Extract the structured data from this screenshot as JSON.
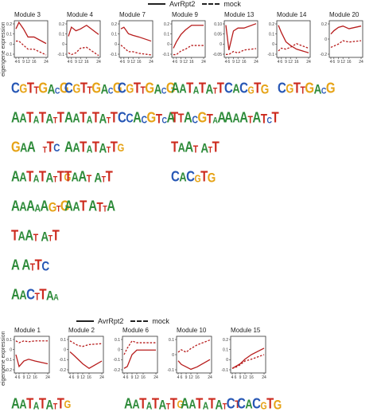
{
  "colors": {
    "A": "#2e8b3a",
    "C": "#2757b5",
    "G": "#e6a317",
    "T": "#cc2a1e",
    "line": "#b71c1c",
    "axis": "#333333"
  },
  "top": {
    "legend": {
      "solid": "AvrRpt2",
      "dashed": "mock"
    },
    "ylabel": "eigengene expression",
    "modules": [
      {
        "title": "Module 3",
        "yticks": [
          "0.2",
          "0.1",
          "0",
          "-0.1"
        ],
        "ylim": [
          -0.15,
          0.3
        ],
        "x": [
          4,
          6,
          9,
          12,
          16,
          24
        ],
        "avr": [
          0.2,
          0.28,
          0.2,
          0.1,
          0.1,
          0.02
        ],
        "mock": [
          0.05,
          0.05,
          0.0,
          -0.05,
          -0.05,
          -0.12
        ]
      },
      {
        "title": "Module 4",
        "yticks": [
          "0.2",
          "0.1",
          "0",
          "-0.1"
        ],
        "ylim": [
          -0.15,
          0.25
        ],
        "x": [
          4,
          6,
          9,
          12,
          16,
          24
        ],
        "avr": [
          0.08,
          0.18,
          0.14,
          0.16,
          0.2,
          0.1
        ],
        "mock": [
          -0.1,
          -0.12,
          -0.1,
          -0.05,
          -0.04,
          -0.13
        ]
      },
      {
        "title": "Module 7",
        "yticks": [
          "0.2",
          "0.1",
          "0",
          "-0.1"
        ],
        "ylim": [
          -0.15,
          0.3
        ],
        "x": [
          4,
          6,
          9,
          12,
          16,
          24
        ],
        "avr": [
          0.2,
          0.22,
          0.14,
          0.12,
          0.1,
          0.05
        ],
        "mock": [
          0.0,
          -0.03,
          -0.08,
          -0.08,
          -0.1,
          -0.12
        ]
      },
      {
        "title": "Module 9",
        "yticks": [
          "0.2",
          "0.1",
          "0",
          "-0.1"
        ],
        "ylim": [
          -0.15,
          0.25
        ],
        "x": [
          4,
          6,
          9,
          12,
          16,
          24
        ],
        "avr": [
          -0.05,
          0.02,
          0.1,
          0.15,
          0.2,
          0.2
        ],
        "mock": [
          -0.12,
          -0.12,
          -0.08,
          -0.06,
          -0.02,
          -0.02
        ]
      },
      {
        "title": "Module 13",
        "yticks": [
          "0.10",
          "0.05",
          "0",
          "-0.05"
        ],
        "ylim": [
          -0.1,
          0.15
        ],
        "x": [
          4,
          6,
          9,
          12,
          16,
          24
        ],
        "avr": [
          0.12,
          -0.05,
          0.08,
          0.1,
          0.1,
          0.13
        ],
        "mock": [
          -0.08,
          -0.08,
          -0.06,
          -0.07,
          -0.05,
          -0.04
        ]
      },
      {
        "title": "Module 14",
        "yticks": [
          "0.2",
          "0.1",
          "0",
          "-0.1"
        ],
        "ylim": [
          -0.15,
          0.25
        ],
        "x": [
          4,
          6,
          9,
          12,
          16,
          24
        ],
        "avr": [
          0.2,
          0.12,
          0.02,
          -0.02,
          -0.06,
          -0.1
        ],
        "mock": [
          -0.08,
          -0.05,
          -0.06,
          -0.04,
          0.0,
          -0.05
        ]
      },
      {
        "title": "Module 20",
        "yticks": [
          "0.2",
          "0",
          "-0.2"
        ],
        "ylim": [
          -0.25,
          0.3
        ],
        "x": [
          4,
          6,
          9,
          12,
          16,
          24
        ],
        "avr": [
          0.1,
          0.15,
          0.2,
          0.22,
          0.18,
          0.22
        ],
        "mock": [
          -0.1,
          -0.08,
          -0.05,
          0.0,
          -0.02,
          0.0
        ]
      }
    ],
    "xticks": [
      "4",
      "6",
      "9",
      "12",
      "16",
      "24"
    ],
    "motif_rows": [
      [
        {
          "seq": "CGTTGACG",
          "col": 0
        },
        {
          "seq": "CGTTGACG",
          "col": 1
        },
        {
          "seq": "CGTTGACG",
          "col": 2
        },
        {
          "seq": "AATATATT",
          "col": 3
        },
        {
          "seq": "CACGTG",
          "col": 4
        },
        {
          "seq": "CGTTGACG",
          "col": 5
        }
      ],
      [
        {
          "seq": "AATATATT",
          "col": 0
        },
        {
          "seq": "AATATATT",
          "col": 1
        },
        {
          "seq": "CCACGTCA",
          "col": 2
        },
        {
          "seq": "TTACGTAA",
          "col": 3
        },
        {
          "seq": "AAATATCT",
          "col": 4
        }
      ],
      [
        {
          "seq": "GAA   TTC",
          "col": 0
        },
        {
          "seq": "AATATATTG",
          "col": 1
        },
        {
          "seq": "TAAT ATT",
          "col": 3
        }
      ],
      [
        {
          "seq": "AATATATTG",
          "col": 0
        },
        {
          "seq": "TAAT ATT",
          "col": 1
        },
        {
          "seq": "CACGTG",
          "col": 3
        }
      ],
      [
        {
          "seq": "AAAAAGTG",
          "col": 0
        },
        {
          "seq": "AAT ATTA",
          "col": 1
        }
      ],
      [
        {
          "seq": "TAAT ATT",
          "col": 0
        }
      ],
      [
        {
          "seq": "A ATTC",
          "col": 0
        }
      ],
      [
        {
          "seq": "AACTTAA",
          "col": 0
        }
      ]
    ]
  },
  "bottom": {
    "legend": {
      "solid": "AvrRpt2",
      "dashed": "mock"
    },
    "ylabel": "eigengene expression",
    "modules": [
      {
        "title": "Module 1",
        "yticks": [
          "0.1",
          "0",
          "-0.1",
          "-0.2"
        ],
        "ylim": [
          -0.25,
          0.15
        ],
        "x": [
          4,
          6,
          9,
          12,
          16,
          24
        ],
        "avr": [
          -0.05,
          -0.18,
          -0.12,
          -0.1,
          -0.12,
          -0.15
        ],
        "mock": [
          0.1,
          0.08,
          0.1,
          0.09,
          0.1,
          0.1
        ]
      },
      {
        "title": "Module 2",
        "yticks": [
          "0.1",
          "0",
          "-0.1",
          "-0.2"
        ],
        "ylim": [
          -0.25,
          0.15
        ],
        "x": [
          4,
          6,
          9,
          12,
          16,
          24
        ],
        "avr": [
          -0.02,
          -0.05,
          -0.1,
          -0.15,
          -0.2,
          -0.12
        ],
        "mock": [
          0.1,
          0.08,
          0.05,
          0.04,
          0.06,
          0.07
        ]
      },
      {
        "title": "Module 6",
        "yticks": [
          "0.1",
          "0",
          "-0.1",
          "-0.2"
        ],
        "ylim": [
          -0.25,
          0.15
        ],
        "x": [
          4,
          6,
          9,
          12,
          16,
          24
        ],
        "avr": [
          -0.2,
          -0.18,
          -0.05,
          0.0,
          0.0,
          0.0
        ],
        "mock": [
          -0.05,
          0.02,
          0.1,
          0.08,
          0.08,
          0.08
        ]
      },
      {
        "title": "Module 10",
        "yticks": [
          "0.1",
          "0",
          "-0.1"
        ],
        "ylim": [
          -0.15,
          0.15
        ],
        "x": [
          4,
          6,
          9,
          12,
          16,
          24
        ],
        "avr": [
          -0.05,
          -0.08,
          -0.1,
          -0.12,
          -0.1,
          -0.04
        ],
        "mock": [
          0.02,
          0.04,
          0.02,
          0.05,
          0.08,
          0.12
        ]
      },
      {
        "title": "Module 15",
        "yticks": [
          "0.2",
          "0.1",
          "0",
          "-0.1"
        ],
        "ylim": [
          -0.15,
          0.25
        ],
        "x": [
          4,
          6,
          9,
          12,
          16,
          24
        ],
        "avr": [
          -0.1,
          -0.08,
          -0.05,
          0.0,
          0.05,
          0.12
        ],
        "mock": [
          -0.1,
          -0.09,
          -0.06,
          -0.02,
          0.0,
          0.05
        ]
      }
    ],
    "xticks": [
      "4",
      "6",
      "9",
      "12",
      "16",
      "24"
    ],
    "motif_rows": [
      [
        {
          "seq": "AATATATTG",
          "col": 0
        },
        {
          "seq": "AATATATTG",
          "col": 2
        },
        {
          "seq": "AATATATCT",
          "col": 3
        },
        {
          "seq": "CACGTG",
          "col": 4
        }
      ]
    ]
  }
}
